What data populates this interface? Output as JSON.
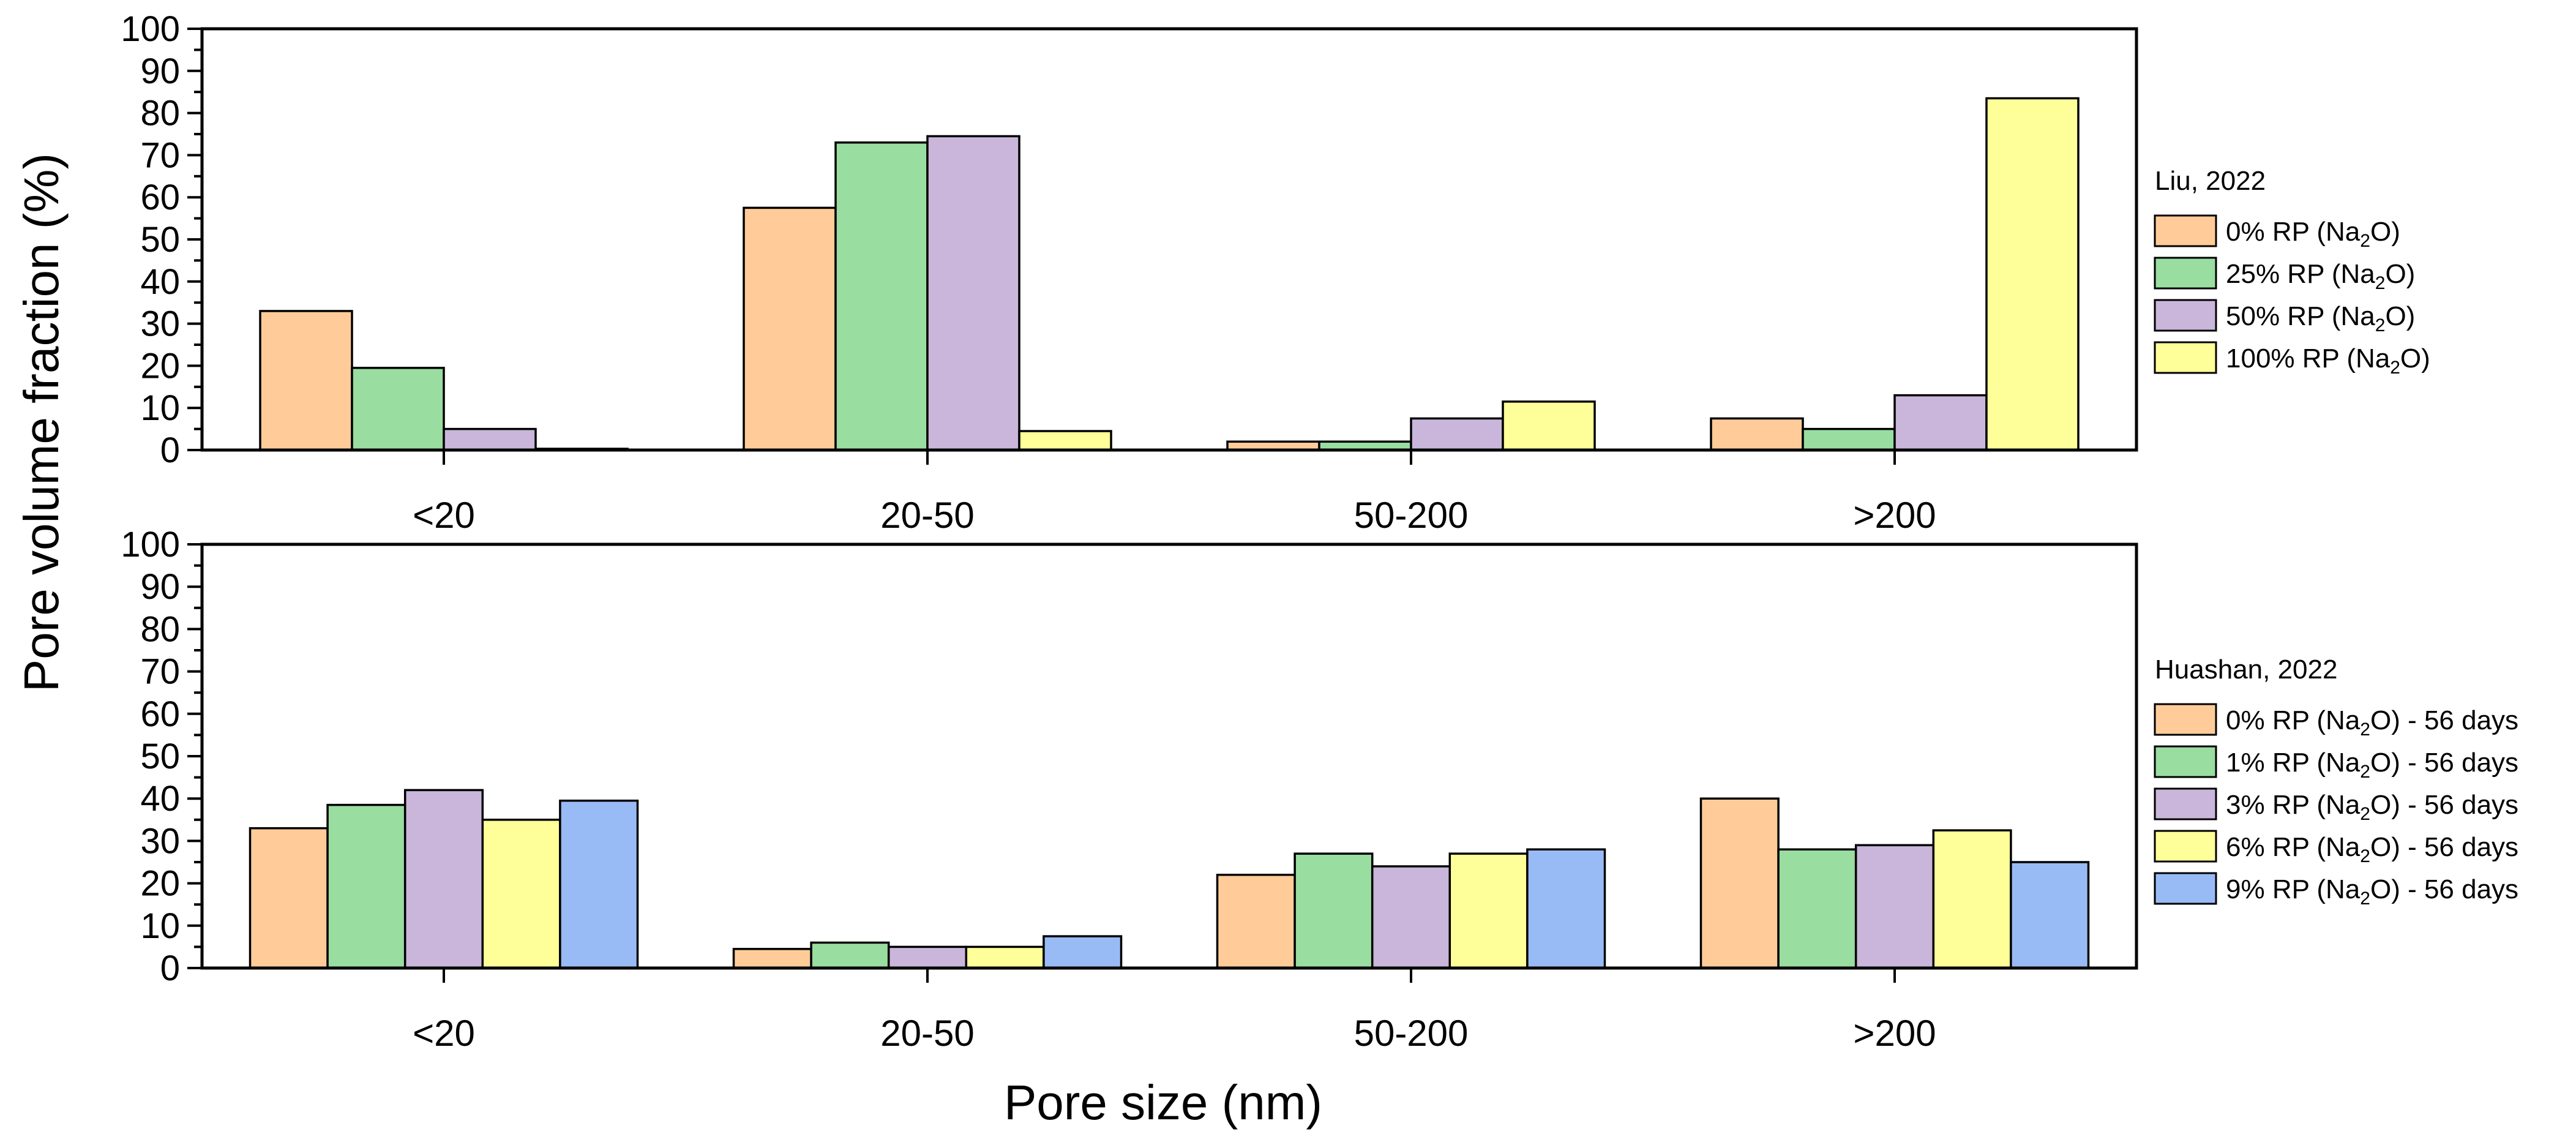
{
  "figure": {
    "ylabel": "Pore volume fraction (%)",
    "xlabel": "Pore size (nm)"
  },
  "chart_data": [
    {
      "type": "bar",
      "title": "",
      "categories": [
        "<20",
        "20-50",
        "50-200",
        ">200"
      ],
      "ylim": [
        0,
        100
      ],
      "yticks": [
        "0",
        "10",
        "20",
        "30",
        "40",
        "50",
        "60",
        "70",
        "80",
        "90",
        "100"
      ],
      "legend_title": "Liu, 2022",
      "legend_position": "right",
      "series": [
        {
          "name": "0% RP (Na2O)",
          "label_parts": [
            "0% RP (Na",
            "2",
            "O)"
          ],
          "color": "#FFCC99",
          "values": [
            33,
            57.5,
            2,
            7.5
          ]
        },
        {
          "name": "25% RP (Na2O)",
          "label_parts": [
            "25% RP (Na",
            "2",
            "O)"
          ],
          "color": "#99DDA0",
          "values": [
            19.5,
            73,
            2,
            5
          ]
        },
        {
          "name": "50% RP (Na2O)",
          "label_parts": [
            "50% RP (Na",
            "2",
            "O)"
          ],
          "color": "#C9B6DA",
          "values": [
            5,
            74.5,
            7.5,
            13
          ]
        },
        {
          "name": "100% RP (Na2O)",
          "label_parts": [
            "100% RP (Na",
            "2",
            "O)"
          ],
          "color": "#FFFF99",
          "values": [
            0.3,
            4.5,
            11.5,
            83.5
          ]
        }
      ]
    },
    {
      "type": "bar",
      "title": "",
      "categories": [
        "<20",
        "20-50",
        "50-200",
        ">200"
      ],
      "ylim": [
        0,
        100
      ],
      "yticks": [
        "0",
        "10",
        "20",
        "30",
        "40",
        "50",
        "60",
        "70",
        "80",
        "90",
        "100"
      ],
      "legend_title": "Huashan, 2022",
      "legend_position": "right",
      "series": [
        {
          "name": "0% RP (Na2O) - 56 days",
          "label_parts": [
            "0% RP (Na",
            "2",
            "O) - 56 days"
          ],
          "color": "#FFCC99",
          "values": [
            33,
            4.5,
            22,
            40
          ]
        },
        {
          "name": "1% RP (Na2O) - 56 days",
          "label_parts": [
            "1% RP (Na",
            "2",
            "O) - 56 days"
          ],
          "color": "#99DDA0",
          "values": [
            38.5,
            6,
            27,
            28
          ]
        },
        {
          "name": "3% RP (Na2O) - 56 days",
          "label_parts": [
            "3% RP (Na",
            "2",
            "O) - 56 days"
          ],
          "color": "#C9B6DA",
          "values": [
            42,
            5,
            24,
            29
          ]
        },
        {
          "name": "6% RP (Na2O) - 56 days",
          "label_parts": [
            "6% RP (Na",
            "2",
            "O) - 56 days"
          ],
          "color": "#FFFF99",
          "values": [
            35,
            5,
            27,
            32.5
          ]
        },
        {
          "name": "9% RP (Na2O) - 56 days",
          "label_parts": [
            "9% RP (Na",
            "2",
            "O) - 56 days"
          ],
          "color": "#99BBF5",
          "values": [
            39.5,
            7.5,
            28,
            25
          ]
        }
      ]
    }
  ]
}
